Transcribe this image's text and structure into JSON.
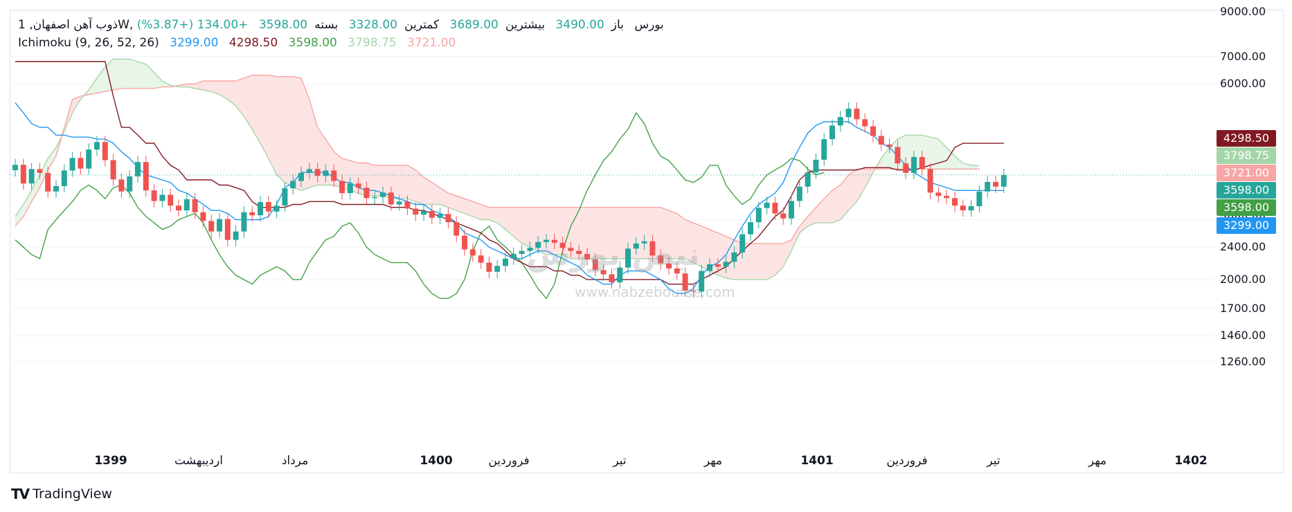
{
  "header": {
    "symbol": "ذوب آهن اصفهان, 1W, بورس",
    "open_label": "باز",
    "open_value": "3490.00",
    "high_label": "بیشترین",
    "high_value": "3689.00",
    "low_label": "کمترین",
    "low_value": "3328.00",
    "close_label": "بسته",
    "close_value": "3598.00",
    "change": "+134.00 (+3.87%)"
  },
  "indicator": {
    "name": "Ichimoku (9, 26, 52, 26)",
    "conversion": "3299.00",
    "base": "4298.50",
    "lagging": "3598.00",
    "lead_a": "3798.75",
    "lead_b": "3721.00"
  },
  "colors": {
    "up": "#26a69a",
    "down": "#ef5350",
    "conversion": "#2196f3",
    "base": "#801922",
    "lagging": "#43a047",
    "lead_a": "#a5d6a7",
    "lead_b": "#f8a5a5",
    "cloud_up": "#e8f5e9",
    "cloud_down": "#fde4e4"
  },
  "price_tags": [
    {
      "value": "4298.50",
      "color": "#801922"
    },
    {
      "value": "3798.75",
      "color": "#a5d6a7"
    },
    {
      "value": "3721.00",
      "color": "#f8a5a5"
    },
    {
      "value": "3598.00",
      "color": "#26a69a"
    },
    {
      "value": "3598.00",
      "color": "#43a047"
    },
    {
      "value": "3299.00",
      "color": "#2196f3"
    }
  ],
  "watermark": {
    "text": "نبض بورس",
    "url": "www.nabzebourse.com"
  },
  "brand": {
    "logo": "TV",
    "name": "TradingView"
  },
  "chart_data": {
    "type": "candlestick",
    "y_scale": "log",
    "ylim": [
      1180,
      9100
    ],
    "y_ticks": [
      "9000.00",
      "7000.00",
      "6000.00",
      "2800.00",
      "2400.00",
      "2000.00",
      "1700.00",
      "1460.00",
      "1260.00"
    ],
    "x_ticks": [
      {
        "label": "1399",
        "bold": true
      },
      {
        "label": "اردیبهشت",
        "bold": false
      },
      {
        "label": "مرداد",
        "bold": false
      },
      {
        "label": "1400",
        "bold": true
      },
      {
        "label": "فروردین",
        "bold": false
      },
      {
        "label": "تیر",
        "bold": false
      },
      {
        "label": "مهر",
        "bold": false
      },
      {
        "label": "1401",
        "bold": true
      },
      {
        "label": "فروردین",
        "bold": false
      },
      {
        "label": "تیر",
        "bold": false
      },
      {
        "label": "مهر",
        "bold": false
      },
      {
        "label": "1402",
        "bold": true
      }
    ],
    "closes": [
      3810,
      3430,
      3720,
      3640,
      3280,
      3380,
      3690,
      3960,
      3730,
      4150,
      4330,
      3910,
      3510,
      3280,
      3570,
      3870,
      3300,
      3110,
      3220,
      3030,
      2950,
      3140,
      2920,
      2780,
      2620,
      2810,
      2500,
      2620,
      2920,
      2870,
      3090,
      2930,
      3030,
      3340,
      3480,
      3640,
      3720,
      3580,
      3690,
      3480,
      3250,
      3430,
      3350,
      3160,
      3180,
      3260,
      3050,
      3100,
      2980,
      2880,
      2940,
      2830,
      2890,
      2760,
      2560,
      2370,
      2290,
      2200,
      2090,
      2160,
      2250,
      2310,
      2350,
      2390,
      2470,
      2500,
      2460,
      2390,
      2350,
      2310,
      2240,
      2110,
      2060,
      1970,
      2140,
      2380,
      2450,
      2480,
      2290,
      2190,
      2130,
      2070,
      1880,
      1870,
      2100,
      2180,
      2150,
      2210,
      2330,
      2580,
      2760,
      2990,
      3080,
      2900,
      2820,
      3110,
      3370,
      3650,
      3920,
      4400,
      4750,
      4980,
      5220,
      4920,
      4730,
      4480,
      4270,
      4210,
      3840,
      3640,
      3980,
      3720,
      3260,
      3200,
      3160,
      3030,
      2950,
      3020,
      3280,
      3460,
      3370,
      3598
    ],
    "conversion_line": [
      5400,
      5100,
      4800,
      4700,
      4700,
      4500,
      4500,
      4450,
      4450,
      4450,
      4400,
      4400,
      4300,
      4100,
      3950,
      3750,
      3600,
      3550,
      3500,
      3450,
      3300,
      3250,
      3150,
      3050,
      2950,
      2950,
      2900,
      2800,
      2800,
      2800,
      2800,
      2850,
      3050,
      3350,
      3450,
      3650,
      3650,
      3650,
      3650,
      3550,
      3450,
      3450,
      3350,
      3300,
      3300,
      3250,
      3200,
      3150,
      3100,
      3050,
      3050,
      2950,
      2900,
      2850,
      2750,
      2600,
      2550,
      2500,
      2400,
      2350,
      2300,
      2250,
      2250,
      2300,
      2350,
      2350,
      2300,
      2250,
      2200,
      2150,
      2050,
      2000,
      1950,
      1950,
      2050,
      2100,
      2100,
      2100,
      2050,
      2000,
      1900,
      1850,
      1850,
      1900,
      2050,
      2150,
      2200,
      2300,
      2500,
      2700,
      2900,
      3050,
      3150,
      3250,
      3450,
      3850,
      4200,
      4550,
      4750,
      4850,
      4850,
      4850,
      4850,
      4700,
      4600,
      4500,
      4300,
      4200,
      4000,
      3800,
      3650,
      3550,
      3450,
      3400,
      3350,
      3300,
      3300,
      3299,
      3299,
      3299,
      3299,
      3299
    ],
    "base_line": [
      6800,
      6800,
      6800,
      6800,
      6800,
      6800,
      6800,
      6800,
      6800,
      6800,
      6800,
      6800,
      5600,
      4700,
      4700,
      4500,
      4300,
      4300,
      4000,
      3800,
      3700,
      3500,
      3500,
      3500,
      3500,
      3400,
      3400,
      3350,
      3300,
      3100,
      3000,
      3000,
      3000,
      3000,
      3050,
      3050,
      3100,
      3100,
      3100,
      3100,
      3050,
      3050,
      3050,
      3050,
      3050,
      3050,
      3000,
      3000,
      3000,
      2950,
      2950,
      2900,
      2850,
      2800,
      2750,
      2700,
      2650,
      2600,
      2500,
      2450,
      2350,
      2250,
      2200,
      2150,
      2150,
      2150,
      2100,
      2100,
      2050,
      2050,
      2000,
      2000,
      2000,
      2000,
      2000,
      2000,
      2000,
      2000,
      2000,
      2000,
      1950,
      1950,
      1950,
      1950,
      2000,
      2050,
      2100,
      2150,
      2250,
      2350,
      2450,
      2550,
      2700,
      2850,
      2950,
      3200,
      3500,
      3650,
      3700,
      3700,
      3700,
      3700,
      3700,
      3700,
      3750,
      3750,
      3750,
      3750,
      3700,
      3700,
      3700,
      3750,
      3800,
      3850,
      3900,
      4200,
      4298.5,
      4298.5,
      4298.5,
      4298.5,
      4298.5,
      4298.5
    ],
    "lagging_span": [
      2500,
      2400,
      2300,
      2250,
      2650,
      2800,
      2950,
      3100,
      3300,
      3400,
      3300,
      3150,
      3350,
      3400,
      3250,
      3000,
      2850,
      2750,
      2650,
      2700,
      2800,
      2850,
      2900,
      2750,
      2500,
      2300,
      2150,
      2050,
      2000,
      1950,
      2050,
      2100,
      2150,
      2100,
      2000,
      2000,
      2200,
      2350,
      2500,
      2550,
      2700,
      2750,
      2600,
      2400,
      2300,
      2250,
      2200,
      2200,
      2200,
      2100,
      1950,
      1850,
      1800,
      1800,
      1850,
      2000,
      2350,
      2600,
      2700,
      2500,
      2400,
      2300,
      2200,
      2050,
      1900,
      1800,
      1950,
      2350,
      2700,
      2950,
      3300,
      3600,
      3900,
      4100,
      4400,
      4650,
      5100,
      4800,
      4300,
      4000,
      3900,
      3700,
      3500,
      3450,
      3550,
      3800,
      3800,
      3400,
      3200,
      3050,
      3150,
      3400,
      3600,
      3700,
      3800,
      3950,
      3900,
      3720,
      3600,
      3650
    ],
    "lead_a": [
      2850,
      3050,
      3300,
      3600,
      3950,
      4200,
      4600,
      5100,
      5500,
      5800,
      6200,
      6600,
      6900,
      6900,
      6900,
      6800,
      6700,
      6400,
      6100,
      5950,
      5900,
      5900,
      5850,
      5800,
      5750,
      5650,
      5500,
      5300,
      5000,
      4650,
      4300,
      3950,
      3600,
      3450,
      3350,
      3300,
      3350,
      3400,
      3400,
      3400,
      3350,
      3300,
      3250,
      3200,
      3200,
      3200,
      3150,
      3150,
      3150,
      3100,
      3050,
      3050,
      3050,
      3000,
      2950,
      2900,
      2850,
      2800,
      2800,
      2750,
      2650,
      2550,
      2450,
      2400,
      2350,
      2300,
      2300,
      2300,
      2250,
      2250,
      2250,
      2250,
      2250,
      2250,
      2250,
      2250,
      2250,
      2250,
      2250,
      2250,
      2250,
      2250,
      2250,
      2200,
      2150,
      2100,
      2050,
      2020,
      2000,
      2000,
      2000,
      2000,
      2000,
      2050,
      2150,
      2350,
      2600,
      2700,
      2750,
      2750,
      2750,
      2800,
      2950,
      3100,
      3350,
      3650,
      3950,
      4200,
      4400,
      4500,
      4500,
      4500,
      4450,
      4400,
      4200,
      4000,
      3850,
      3800,
      3798.75
    ],
    "lead_b": [
      2700,
      2850,
      3100,
      3350,
      3700,
      4000,
      4700,
      5500,
      5600,
      5650,
      5700,
      5750,
      5800,
      5850,
      5850,
      5850,
      5850,
      5850,
      5900,
      5900,
      5950,
      6000,
      6000,
      6100,
      6100,
      6100,
      6100,
      6100,
      6200,
      6300,
      6300,
      6300,
      6250,
      6250,
      6250,
      6200,
      5500,
      4700,
      4400,
      4100,
      3950,
      3900,
      3850,
      3850,
      3800,
      3800,
      3800,
      3800,
      3800,
      3700,
      3550,
      3450,
      3350,
      3250,
      3200,
      3150,
      3100,
      3050,
      3000,
      3000,
      3000,
      3000,
      3000,
      3000,
      3000,
      3000,
      3000,
      3000,
      3000,
      3000,
      3000,
      3000,
      3000,
      3000,
      3000,
      3000,
      3000,
      3000,
      3000,
      3000,
      2950,
      2900,
      2800,
      2750,
      2700,
      2650,
      2600,
      2550,
      2500,
      2450,
      2450,
      2450,
      2450,
      2450,
      2450,
      2500,
      2700,
      2850,
      3000,
      3150,
      3300,
      3400,
      3600,
      3721,
      3721,
      3721,
      3721,
      3721,
      3721,
      3721,
      3721,
      3721,
      3721,
      3721,
      3721,
      3721,
      3721,
      3721,
      3721
    ]
  }
}
